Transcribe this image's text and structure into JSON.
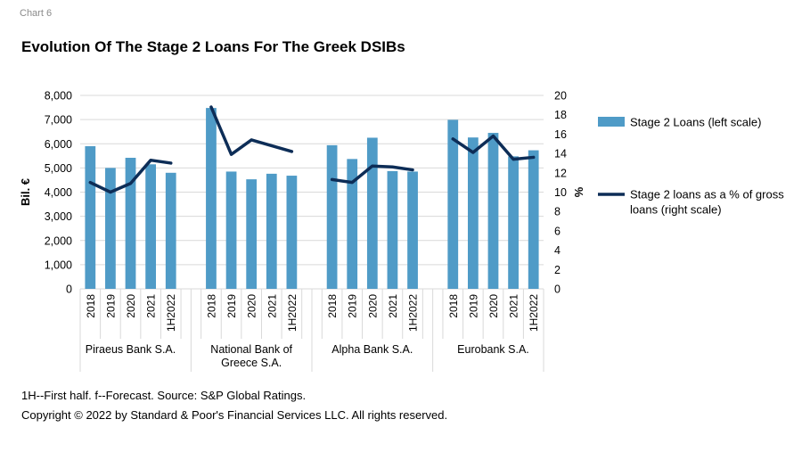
{
  "header": {
    "chart_label": "Chart 6",
    "title": "Evolution Of The Stage 2 Loans For The Greek DSIBs"
  },
  "notes": {
    "line1": "1H--First half. f--Forecast. Source: S&P Global Ratings.",
    "line2": "Copyright © 2022 by Standard & Poor's Financial Services LLC. All rights reserved."
  },
  "chart_data": {
    "type": "bar",
    "title": "Evolution Of The Stage 2 Loans For The Greek DSIBs",
    "ylabel": "Bil. €",
    "y2label": "%",
    "ylim": [
      0,
      8000
    ],
    "y2lim": [
      0,
      20
    ],
    "yticks": [
      "0",
      "1,000",
      "2,000",
      "3,000",
      "4,000",
      "5,000",
      "6,000",
      "7,000",
      "8,000"
    ],
    "y2ticks": [
      "0",
      "2",
      "4",
      "6",
      "8",
      "10",
      "12",
      "14",
      "16",
      "18",
      "20"
    ],
    "groups": [
      {
        "name": "Piraeus Bank S.A.",
        "periods": [
          "2018",
          "2019",
          "2020",
          "2021",
          "1H2022"
        ]
      },
      {
        "name": "National Bank of Greece S.A.",
        "name_lines": [
          "National Bank of",
          "Greece S.A."
        ],
        "periods": [
          "2018",
          "2019",
          "2020",
          "2021",
          "1H2022"
        ]
      },
      {
        "name": "Alpha Bank S.A.",
        "periods": [
          "2018",
          "2019",
          "2020",
          "2021",
          "1H2022"
        ]
      },
      {
        "name": "Eurobank S.A.",
        "periods": [
          "2018",
          "2019",
          "2020",
          "2021",
          "1H2022"
        ]
      }
    ],
    "series": [
      {
        "name": "Stage 2 Loans (left scale)",
        "type": "bar",
        "axis": "left",
        "color": "#4f9bc7",
        "values": [
          [
            5900,
            5000,
            5420,
            5150,
            4800
          ],
          [
            7480,
            4850,
            4530,
            4760,
            4680
          ],
          [
            5940,
            5370,
            6250,
            4870,
            4850
          ],
          [
            6990,
            6260,
            6450,
            5480,
            5730
          ]
        ]
      },
      {
        "name": "Stage 2 loans as a % of gross loans (right scale)",
        "name_lines": [
          "Stage 2 loans as a % of gross",
          "loans (right scale)"
        ],
        "type": "line",
        "axis": "right",
        "color": "#0d2d57",
        "values": [
          [
            11.0,
            10.0,
            10.9,
            13.3,
            13.0
          ],
          [
            18.8,
            13.9,
            15.4,
            14.8,
            14.2
          ],
          [
            11.3,
            11.0,
            12.7,
            12.6,
            12.3
          ],
          [
            15.5,
            14.1,
            15.8,
            13.4,
            13.6
          ]
        ]
      }
    ],
    "grid": true,
    "legend": "right"
  }
}
